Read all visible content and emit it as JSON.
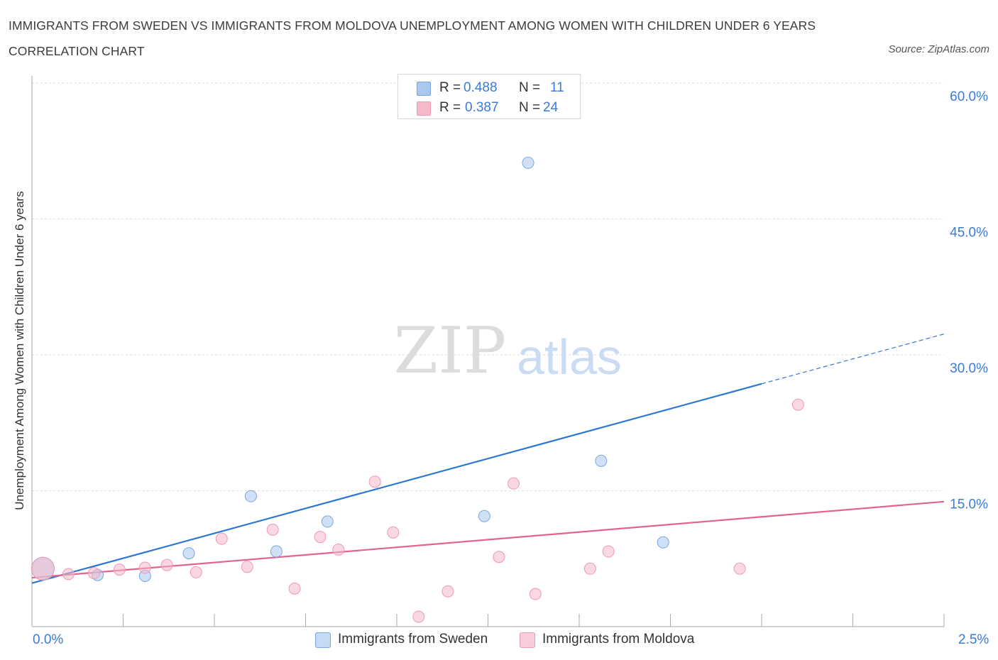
{
  "header": {
    "title": "IMMIGRANTS FROM SWEDEN VS IMMIGRANTS FROM MOLDOVA UNEMPLOYMENT AMONG WOMEN WITH CHILDREN UNDER 6 YEARS CORRELATION CHART",
    "source": "Source: ZipAtlas.com"
  },
  "watermark": {
    "zip": "ZIP",
    "atlas": "atlas"
  },
  "legend": {
    "r_label": "R =",
    "n_label": "N =",
    "rows": [
      {
        "r": "0.488",
        "n": "11",
        "color": "#a9c8f0"
      },
      {
        "r": "0.387",
        "n": "24",
        "color": "#f6b8cb"
      }
    ]
  },
  "chart_data": {
    "type": "scatter",
    "title": "IMMIGRANTS FROM SWEDEN VS IMMIGRANTS FROM MOLDOVA UNEMPLOYMENT AMONG WOMEN WITH CHILDREN UNDER 6 YEARS CORRELATION CHART",
    "xlabel": "",
    "ylabel": "Unemployment Among Women with Children Under 6 years",
    "xlim": [
      0,
      2.5
    ],
    "ylim": [
      0,
      60
    ],
    "x_tick_labels": [
      "0.0%",
      "2.5%"
    ],
    "y_ticks": [
      15,
      30,
      45,
      60
    ],
    "y_tick_labels": [
      "15.0%",
      "30.0%",
      "45.0%",
      "60.0%"
    ],
    "grid": true,
    "series": [
      {
        "name": "Immigrants from Sweden",
        "color": "#a9c8f0",
        "stroke": "#7aa6dd",
        "line_color": "#2f78d0",
        "points": [
          {
            "x": 0.03,
            "y": 6.4,
            "big": true
          },
          {
            "x": 0.18,
            "y": 5.7
          },
          {
            "x": 0.31,
            "y": 5.6
          },
          {
            "x": 0.43,
            "y": 8.1
          },
          {
            "x": 0.6,
            "y": 14.4
          },
          {
            "x": 0.67,
            "y": 8.3
          },
          {
            "x": 0.81,
            "y": 11.6
          },
          {
            "x": 1.24,
            "y": 12.2
          },
          {
            "x": 1.36,
            "y": 51.2
          },
          {
            "x": 1.56,
            "y": 18.3
          },
          {
            "x": 1.73,
            "y": 9.3
          }
        ],
        "trend": {
          "x0": 0.0,
          "y0": 4.8,
          "x1": 2.0,
          "y1": 26.8,
          "x_dash_end": 2.5,
          "y_dash_end": 32.3
        }
      },
      {
        "name": "Immigrants from Moldova",
        "color": "#f6b8cb",
        "stroke": "#ee9ab3",
        "line_color": "#e0648f",
        "points": [
          {
            "x": 0.03,
            "y": 6.4,
            "big": true
          },
          {
            "x": 0.1,
            "y": 5.8
          },
          {
            "x": 0.17,
            "y": 5.9
          },
          {
            "x": 0.24,
            "y": 6.3
          },
          {
            "x": 0.31,
            "y": 6.5
          },
          {
            "x": 0.37,
            "y": 6.8
          },
          {
            "x": 0.45,
            "y": 6.0
          },
          {
            "x": 0.52,
            "y": 9.7
          },
          {
            "x": 0.59,
            "y": 6.6
          },
          {
            "x": 0.66,
            "y": 10.7
          },
          {
            "x": 0.72,
            "y": 4.2
          },
          {
            "x": 0.79,
            "y": 9.9
          },
          {
            "x": 0.84,
            "y": 8.5
          },
          {
            "x": 0.94,
            "y": 16.0
          },
          {
            "x": 0.99,
            "y": 10.4
          },
          {
            "x": 1.06,
            "y": 1.1
          },
          {
            "x": 1.14,
            "y": 3.9
          },
          {
            "x": 1.28,
            "y": 7.7
          },
          {
            "x": 1.32,
            "y": 15.8
          },
          {
            "x": 1.38,
            "y": 3.6
          },
          {
            "x": 1.53,
            "y": 6.4
          },
          {
            "x": 1.58,
            "y": 8.3
          },
          {
            "x": 1.94,
            "y": 6.4
          },
          {
            "x": 2.1,
            "y": 24.5
          }
        ],
        "trend": {
          "x0": 0.0,
          "y0": 5.4,
          "x1": 2.5,
          "y1": 13.8
        }
      }
    ]
  }
}
